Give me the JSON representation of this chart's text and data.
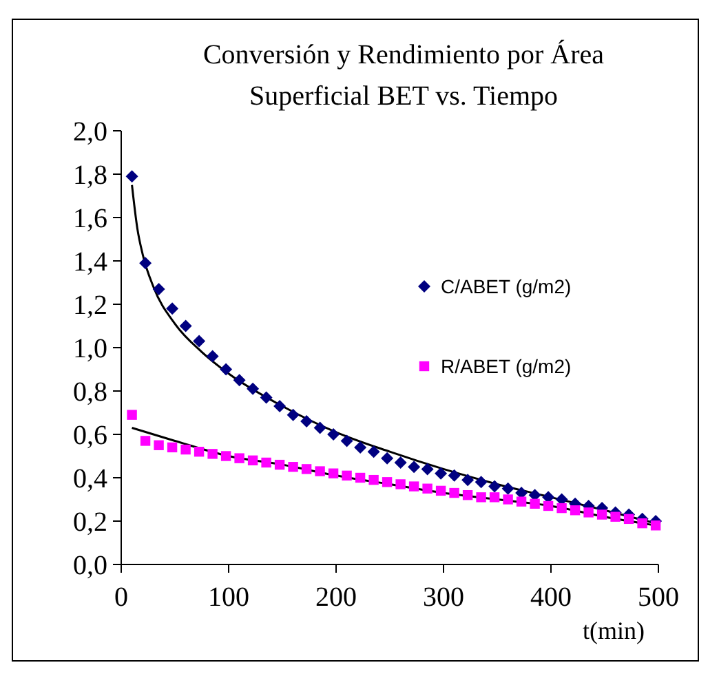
{
  "chart_data": {
    "type": "scatter",
    "title": "Conversión y Rendimiento por Área Superficial BET vs. Tiempo",
    "xlabel": "t(min)",
    "xlim": [
      0,
      500
    ],
    "xticks": [
      0,
      100,
      200,
      300,
      400,
      500
    ],
    "ylim": [
      0,
      2
    ],
    "yticks": [
      {
        "value": 0,
        "label": "0,0"
      },
      {
        "value": 0.2,
        "label": "0,2"
      },
      {
        "value": 0.4,
        "label": "0,4"
      },
      {
        "value": 0.6,
        "label": "0,6"
      },
      {
        "value": 0.8,
        "label": "0,8"
      },
      {
        "value": 1,
        "label": "1,0"
      },
      {
        "value": 1.2,
        "label": "1,2"
      },
      {
        "value": 1.4,
        "label": "1,4"
      },
      {
        "value": 1.6,
        "label": "1,6"
      },
      {
        "value": 1.8,
        "label": "1,8"
      },
      {
        "value": 2,
        "label": "2,0"
      }
    ],
    "grid": false,
    "legend": "right",
    "series": [
      {
        "name": "C/ABET (g/m2)",
        "color": "#000080",
        "marker": "diamond",
        "x": [
          10,
          22.5,
          35,
          47.5,
          60,
          72.5,
          85,
          97.5,
          110,
          122.5,
          135,
          147.5,
          160,
          172.5,
          185,
          197.5,
          210,
          222.5,
          235,
          247.5,
          260,
          272.5,
          285,
          297.5,
          310,
          322.5,
          335,
          347.5,
          360,
          372.5,
          385,
          397.5,
          410,
          422.5,
          435,
          447.5,
          460,
          472.5,
          485,
          497.5
        ],
        "values": [
          1.79,
          1.39,
          1.27,
          1.18,
          1.1,
          1.03,
          0.96,
          0.9,
          0.85,
          0.81,
          0.77,
          0.73,
          0.69,
          0.66,
          0.63,
          0.6,
          0.57,
          0.54,
          0.52,
          0.49,
          0.47,
          0.45,
          0.44,
          0.42,
          0.41,
          0.39,
          0.38,
          0.36,
          0.35,
          0.33,
          0.32,
          0.31,
          0.3,
          0.28,
          0.27,
          0.26,
          0.24,
          0.23,
          0.21,
          0.2
        ]
      },
      {
        "name": "R/ABET (g/m2)",
        "color": "#ff00ff",
        "marker": "square",
        "x": [
          10,
          22.5,
          35,
          47.5,
          60,
          72.5,
          85,
          97.5,
          110,
          122.5,
          135,
          147.5,
          160,
          172.5,
          185,
          197.5,
          210,
          222.5,
          235,
          247.5,
          260,
          272.5,
          285,
          297.5,
          310,
          322.5,
          335,
          347.5,
          360,
          372.5,
          385,
          397.5,
          410,
          422.5,
          435,
          447.5,
          460,
          472.5,
          485,
          497.5
        ],
        "values": [
          0.69,
          0.57,
          0.55,
          0.54,
          0.53,
          0.52,
          0.51,
          0.5,
          0.49,
          0.48,
          0.47,
          0.46,
          0.45,
          0.44,
          0.43,
          0.42,
          0.41,
          0.4,
          0.39,
          0.38,
          0.37,
          0.36,
          0.35,
          0.34,
          0.33,
          0.32,
          0.31,
          0.31,
          0.3,
          0.29,
          0.28,
          0.27,
          0.26,
          0.25,
          0.24,
          0.23,
          0.22,
          0.21,
          0.19,
          0.18
        ]
      },
      {
        "type": "line",
        "color": "#000000",
        "x": [
          10,
          15,
          20,
          30,
          50,
          75,
          100,
          150,
          200,
          250,
          300,
          350,
          400,
          450,
          497.5
        ],
        "values": [
          1.75,
          1.55,
          1.43,
          1.28,
          1.11,
          0.98,
          0.88,
          0.73,
          0.61,
          0.52,
          0.44,
          0.37,
          0.31,
          0.25,
          0.19
        ]
      },
      {
        "type": "line",
        "color": "#000000",
        "x": [
          10,
          50,
          100,
          150,
          200,
          250,
          300,
          350,
          400,
          450,
          497.5
        ],
        "values": [
          0.63,
          0.57,
          0.5,
          0.46,
          0.41,
          0.37,
          0.33,
          0.3,
          0.27,
          0.22,
          0.18
        ]
      }
    ]
  }
}
